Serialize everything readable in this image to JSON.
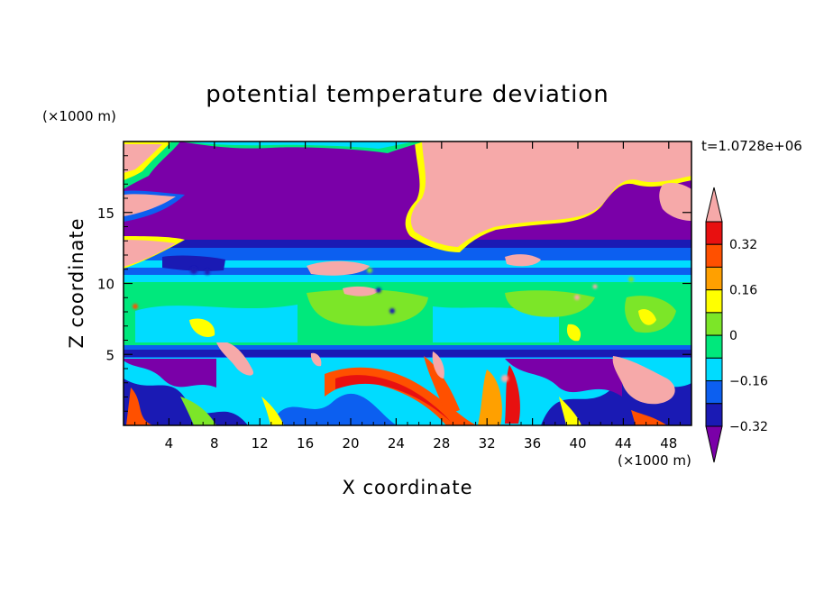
{
  "chart_data": {
    "type": "heatmap",
    "title": "potential temperature deviation",
    "xlabel": "X coordinate",
    "ylabel": "Z coordinate",
    "x_unit": "(×1000 m)",
    "y_unit": "(×1000 m)",
    "time_label": "t=1.0728e+06",
    "xlim": [
      0,
      50
    ],
    "ylim": [
      0,
      20
    ],
    "x_ticks": [
      4,
      8,
      12,
      16,
      20,
      24,
      28,
      32,
      36,
      40,
      44,
      48
    ],
    "y_ticks": [
      5,
      10,
      15
    ],
    "colorbar": {
      "levels": [
        -0.4,
        -0.32,
        -0.24,
        -0.16,
        -0.08,
        0,
        0.08,
        0.16,
        0.24,
        0.32,
        0.4
      ],
      "labeled": [
        "0.32",
        "0.16",
        "0",
        "−0.16",
        "−0.32"
      ],
      "colors": [
        "#7a00a8",
        "#1a1ab4",
        "#0c5ff0",
        "#00dcff",
        "#00e87c",
        "#7ce628",
        "#ffff00",
        "#ffa000",
        "#ff5000",
        "#e81010",
        "#f6a9a9"
      ]
    },
    "regions": [
      {
        "name": "upper-purple-layer",
        "z": [
          13,
          19.5
        ],
        "x": [
          0,
          50
        ],
        "color_index": 0
      },
      {
        "name": "upper-pink-blob",
        "z": [
          13.5,
          19.5
        ],
        "x": [
          21,
          40
        ],
        "color_index": 10
      },
      {
        "name": "blue-band",
        "z": [
          10.5,
          13
        ],
        "x": [
          0,
          50
        ],
        "color_index": 2
      },
      {
        "name": "green-layer",
        "z": [
          5,
          10.5
        ],
        "x": [
          0,
          50
        ],
        "color_index": 4
      },
      {
        "name": "lower-turbulent-layer",
        "z": [
          0,
          5
        ],
        "x": [
          0,
          50
        ],
        "color_index": 1
      }
    ]
  }
}
